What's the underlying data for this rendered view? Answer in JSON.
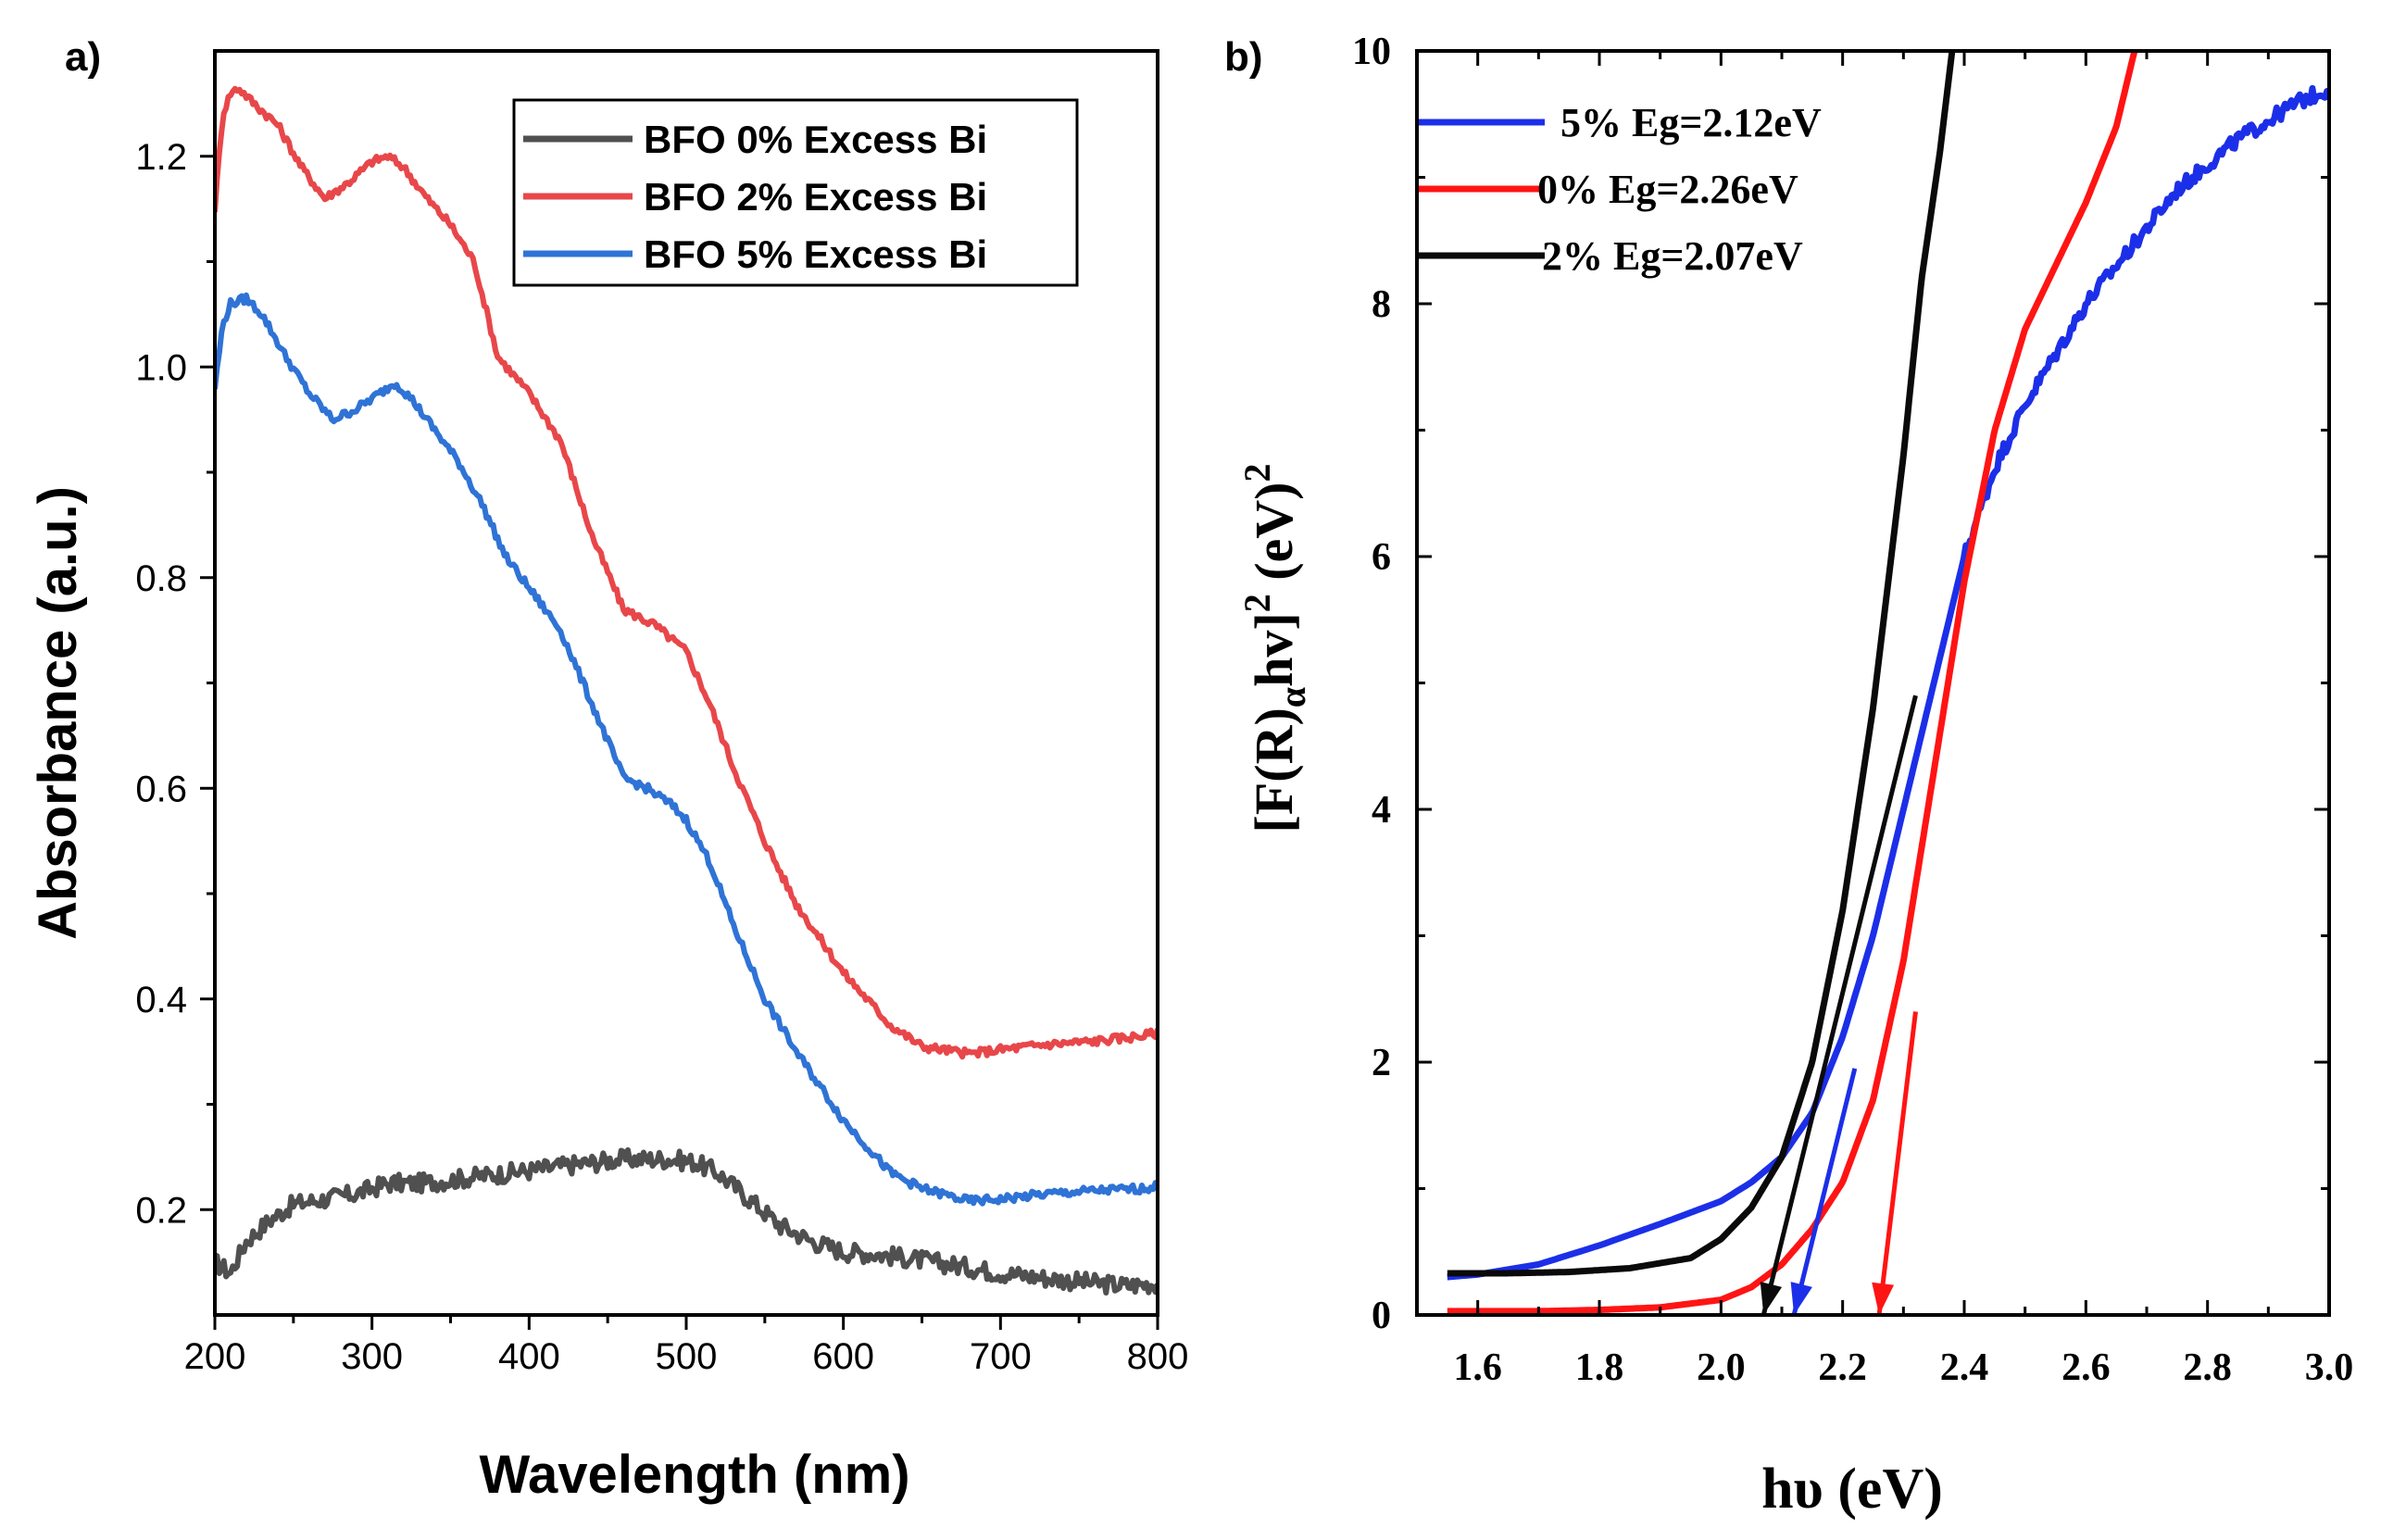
{
  "chart_data": [
    {
      "panel_label": "a)",
      "type": "line",
      "title": "",
      "xlabel": "Wavelength (nm)",
      "ylabel": "Absorbance (a.u.)",
      "xlim": [
        200,
        800
      ],
      "ylim": [
        0.1,
        1.3
      ],
      "xticks": [
        200,
        300,
        400,
        500,
        600,
        700,
        800
      ],
      "xtick_labels": [
        "200",
        "300",
        "400",
        "500",
        "600",
        "700",
        "800"
      ],
      "yticks": [
        0.2,
        0.4,
        0.6,
        0.8,
        1.0,
        1.2
      ],
      "ytick_labels": [
        "0.2",
        "0.4",
        "0.6",
        "0.8",
        "1.0",
        "1.2"
      ],
      "legend_position": "top-right",
      "series": [
        {
          "name": "BFO 0% Excess Bi",
          "color": "#505050",
          "x": [
            200,
            210,
            220,
            235,
            250,
            270,
            290,
            310,
            330,
            350,
            370,
            400,
            430,
            460,
            490,
            505,
            520,
            540,
            560,
            580,
            600,
            620,
            650,
            680,
            700,
            730,
            760,
            780,
            800
          ],
          "y": [
            0.15,
            0.14,
            0.17,
            0.19,
            0.205,
            0.21,
            0.215,
            0.225,
            0.225,
            0.228,
            0.232,
            0.237,
            0.243,
            0.248,
            0.248,
            0.245,
            0.235,
            0.21,
            0.185,
            0.17,
            0.16,
            0.158,
            0.152,
            0.145,
            0.14,
            0.135,
            0.13,
            0.128,
            0.13
          ]
        },
        {
          "name": "BFO 2% Excess Bi",
          "color": "#e8474a",
          "x": [
            200,
            205,
            210,
            215,
            225,
            240,
            255,
            270,
            285,
            300,
            310,
            320,
            335,
            350,
            365,
            380,
            400,
            420,
            440,
            460,
            480,
            500,
            515,
            530,
            550,
            570,
            600,
            630,
            650,
            680,
            700,
            730,
            760,
            790,
            800
          ],
          "y": [
            1.15,
            1.24,
            1.26,
            1.265,
            1.25,
            1.23,
            1.19,
            1.16,
            1.175,
            1.195,
            1.2,
            1.19,
            1.16,
            1.135,
            1.1,
            1.01,
            0.975,
            0.93,
            0.84,
            0.77,
            0.755,
            0.73,
            0.68,
            0.62,
            0.55,
            0.49,
            0.425,
            0.375,
            0.355,
            0.348,
            0.352,
            0.357,
            0.36,
            0.365,
            0.368
          ]
        },
        {
          "name": "BFO 5% Excess Bi",
          "color": "#2f73d6",
          "x": [
            200,
            205,
            210,
            220,
            230,
            245,
            260,
            275,
            290,
            305,
            315,
            325,
            340,
            355,
            370,
            385,
            400,
            420,
            440,
            460,
            475,
            490,
            500,
            515,
            530,
            550,
            570,
            600,
            630,
            650,
            680,
            700,
            730,
            760,
            790,
            800
          ],
          "y": [
            0.98,
            1.04,
            1.06,
            1.065,
            1.05,
            1.01,
            0.975,
            0.95,
            0.96,
            0.975,
            0.985,
            0.97,
            0.94,
            0.91,
            0.87,
            0.82,
            0.79,
            0.75,
            0.68,
            0.61,
            0.6,
            0.585,
            0.57,
            0.53,
            0.47,
            0.4,
            0.35,
            0.285,
            0.235,
            0.22,
            0.208,
            0.21,
            0.215,
            0.218,
            0.22,
            0.222
          ]
        }
      ]
    },
    {
      "panel_label": "b)",
      "type": "line",
      "title": "",
      "xlabel": "hυ (eV)",
      "ylabel": "[F(R)αhv]² (eV)²",
      "ylabel_parts": {
        "pre": "[F(R)",
        "sub": "α",
        "mid": "hv]",
        "sup1": "2",
        "post": " (eV)",
        "sup2": "2"
      },
      "xlim": [
        1.5,
        3.0
      ],
      "ylim": [
        0,
        10
      ],
      "xticks": [
        1.6,
        1.8,
        2.0,
        2.2,
        2.4,
        2.6,
        2.8,
        3.0
      ],
      "xtick_labels": [
        "1.6",
        "1.8",
        "2.0",
        "2.2",
        "2.4",
        "2.6",
        "2.8",
        "3.0"
      ],
      "yticks": [
        0,
        2,
        4,
        6,
        8,
        10
      ],
      "ytick_labels": [
        "0",
        "2",
        "4",
        "6",
        "8",
        "10"
      ],
      "legend_position": "top-left",
      "series": [
        {
          "name": "5% Eg=2.12eV",
          "color": "#1c2fe8",
          "x": [
            1.55,
            1.6,
            1.7,
            1.8,
            1.9,
            2.0,
            2.05,
            2.1,
            2.15,
            2.2,
            2.25,
            2.3,
            2.35,
            2.4,
            2.45,
            2.5,
            2.55,
            2.6,
            2.65,
            2.7,
            2.75,
            2.8,
            2.85,
            2.9,
            2.95,
            3.0
          ],
          "y": [
            0.3,
            0.32,
            0.4,
            0.55,
            0.72,
            0.9,
            1.05,
            1.25,
            1.6,
            2.2,
            3.0,
            4.0,
            5.0,
            6.0,
            6.7,
            7.2,
            7.6,
            8.0,
            8.3,
            8.6,
            8.9,
            9.1,
            9.3,
            9.45,
            9.6,
            9.7
          ]
        },
        {
          "name": "0% Eg=2.26eV",
          "color": "#ff1414",
          "x": [
            1.55,
            1.7,
            1.8,
            1.9,
            2.0,
            2.05,
            2.1,
            2.15,
            2.2,
            2.25,
            2.3,
            2.35,
            2.4,
            2.45,
            2.5,
            2.55,
            2.6,
            2.65,
            2.68
          ],
          "y": [
            0.03,
            0.03,
            0.04,
            0.06,
            0.12,
            0.22,
            0.4,
            0.68,
            1.05,
            1.7,
            2.8,
            4.3,
            5.8,
            7.0,
            7.8,
            8.3,
            8.8,
            9.4,
            10.0
          ]
        },
        {
          "name": "2% Eg=2.07eV",
          "color": "#0a0a0a",
          "x": [
            1.55,
            1.65,
            1.75,
            1.85,
            1.95,
            2.0,
            2.05,
            2.1,
            2.15,
            2.2,
            2.25,
            2.3,
            2.33,
            2.36,
            2.38
          ],
          "y": [
            0.33,
            0.33,
            0.34,
            0.37,
            0.45,
            0.6,
            0.85,
            1.25,
            2.0,
            3.2,
            4.8,
            6.8,
            8.2,
            9.2,
            10.0
          ]
        }
      ],
      "tangent_lines": [
        {
          "color": "#0a0a0a",
          "x": [
            2.07,
            2.32
          ],
          "y": [
            0,
            4.9
          ]
        },
        {
          "color": "#1c2fe8",
          "x": [
            2.12,
            2.22
          ],
          "y": [
            0,
            1.95
          ]
        },
        {
          "color": "#ff1414",
          "x": [
            2.26,
            2.32
          ],
          "y": [
            0,
            2.4
          ]
        }
      ]
    }
  ]
}
